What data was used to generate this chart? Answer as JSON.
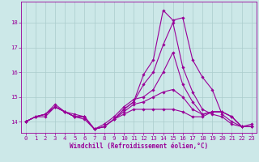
{
  "title": "",
  "xlabel": "Windchill (Refroidissement éolien,°C)",
  "ylabel": "",
  "bg_color": "#cce8e8",
  "line_color": "#990099",
  "grid_color": "#aacccc",
  "hours": [
    0,
    1,
    2,
    3,
    4,
    5,
    6,
    7,
    8,
    9,
    10,
    11,
    12,
    13,
    14,
    15,
    16,
    17,
    18,
    19,
    20,
    21,
    22,
    23
  ],
  "series": [
    [
      14.0,
      14.2,
      14.2,
      14.6,
      14.4,
      14.3,
      14.2,
      13.7,
      13.8,
      14.1,
      14.5,
      14.8,
      15.9,
      16.5,
      18.5,
      18.1,
      18.2,
      16.5,
      15.8,
      15.3,
      14.3,
      14.0,
      13.8,
      13.8
    ],
    [
      14.0,
      14.2,
      14.3,
      14.7,
      14.4,
      14.2,
      14.1,
      13.7,
      13.8,
      14.1,
      14.5,
      14.8,
      15.5,
      16.0,
      17.1,
      18.0,
      16.2,
      15.2,
      14.5,
      14.3,
      14.2,
      13.9,
      13.8,
      13.9
    ],
    [
      14.0,
      14.2,
      14.3,
      14.6,
      14.4,
      14.2,
      14.2,
      13.7,
      13.9,
      14.2,
      14.6,
      14.9,
      15.0,
      15.3,
      16.0,
      16.8,
      15.5,
      14.8,
      14.3,
      14.4,
      14.4,
      14.2,
      13.8,
      13.8
    ],
    [
      14.0,
      14.2,
      14.3,
      14.6,
      14.4,
      14.2,
      14.2,
      13.7,
      13.8,
      14.1,
      14.4,
      14.7,
      14.8,
      15.0,
      15.2,
      15.3,
      15.0,
      14.5,
      14.3,
      14.4,
      14.4,
      14.2,
      13.8,
      13.8
    ],
    [
      14.0,
      14.2,
      14.3,
      14.6,
      14.4,
      14.2,
      14.2,
      13.7,
      13.8,
      14.1,
      14.3,
      14.5,
      14.5,
      14.5,
      14.5,
      14.5,
      14.4,
      14.2,
      14.2,
      14.4,
      14.4,
      14.2,
      13.8,
      13.8
    ]
  ],
  "ylim": [
    13.55,
    18.85
  ],
  "yticks": [
    14,
    15,
    16,
    17,
    18
  ],
  "marker": "D",
  "markersize": 1.8,
  "linewidth": 0.8,
  "xlabel_fontsize": 5.5,
  "tick_fontsize": 5.2
}
